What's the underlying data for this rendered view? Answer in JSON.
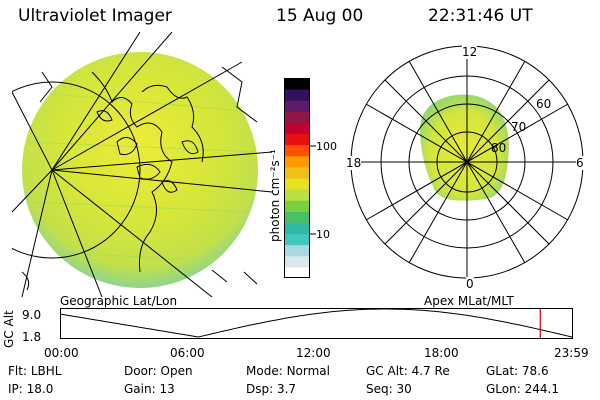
{
  "header": {
    "instrument": "Ultraviolet Imager",
    "date": "15 Aug 00",
    "time": "22:31:46 UT"
  },
  "colorbar": {
    "unit_label": "photon cm⁻²s⁻¹",
    "ticks": [
      "100",
      "10"
    ],
    "colors": [
      "#ffffff",
      "#d8e8ef",
      "#a8d8e4",
      "#40c8c0",
      "#30b8a0",
      "#48c068",
      "#7ad040",
      "#b8e040",
      "#e8e020",
      "#f0c018",
      "#ff9a00",
      "#ff5000",
      "#e81010",
      "#c00030",
      "#901848",
      "#601868",
      "#301060",
      "#000000"
    ]
  },
  "map_left": {
    "label": "Geographic Lat/Lon"
  },
  "polar_right": {
    "label": "Apex MLat/MLT",
    "mlt_labels": {
      "top": "12",
      "bottom": "0",
      "left": "18",
      "right": "6"
    },
    "lat_labels": [
      "60",
      "70",
      "80"
    ]
  },
  "altitude_plot": {
    "ylabel": "GC Alt",
    "y_ticks": [
      "9.0",
      "1.8"
    ],
    "x_ticks": [
      "00:00",
      "06:00",
      "12:00",
      "18:00",
      "23:59"
    ],
    "marker_color": "#cc0000",
    "marker_time_fraction": 0.938
  },
  "status": {
    "row1": [
      {
        "label": "Flt:",
        "value": "LBHL"
      },
      {
        "label": "Door:",
        "value": "Open"
      },
      {
        "label": "Mode:",
        "value": "Normal"
      },
      {
        "label": "GC Alt:",
        "value": "4.7 Re"
      },
      {
        "label": "GLat:",
        "value": "78.6"
      }
    ],
    "row2": [
      {
        "label": "IP:",
        "value": "18.0"
      },
      {
        "label": "Gain:",
        "value": "13"
      },
      {
        "label": "Dsp:",
        "value": "3.7"
      },
      {
        "label": "Seq:",
        "value": "30"
      },
      {
        "label": "GLon:",
        "value": "244.1"
      }
    ]
  }
}
